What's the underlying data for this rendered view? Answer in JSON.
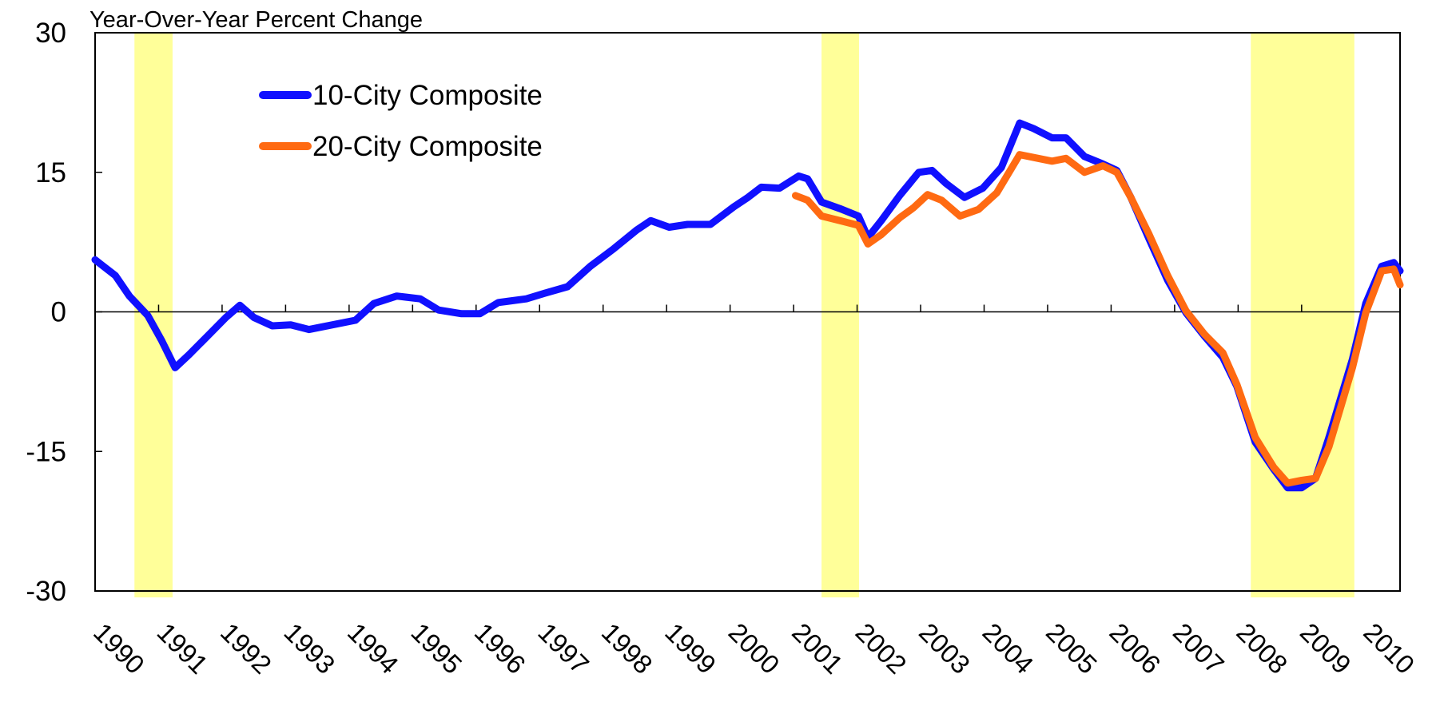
{
  "chart_data": {
    "type": "line",
    "y_label": "Year-Over-Year Percent Change",
    "xlim": [
      1990,
      2010.55
    ],
    "ylim": [
      -30,
      30
    ],
    "yticks": [
      -30,
      -15,
      0,
      15,
      30
    ],
    "xticks": [
      1990,
      1991,
      1992,
      1993,
      1994,
      1995,
      1996,
      1997,
      1998,
      1999,
      2000,
      2001,
      2002,
      2003,
      2004,
      2005,
      2006,
      2007,
      2008,
      2009,
      2010
    ],
    "legend": "upper left",
    "recession_color": "#ffff99",
    "recessions": [
      [
        1990.62,
        1991.22
      ],
      [
        2001.44,
        2002.03
      ],
      [
        2008.2,
        2009.83
      ]
    ],
    "series": [
      {
        "name": "10-City Composite",
        "color": "#1010ff",
        "x": [
          1990.0,
          1990.32,
          1990.54,
          1990.83,
          1991.05,
          1991.26,
          1991.48,
          1991.77,
          1992.06,
          1992.28,
          1992.5,
          1992.79,
          1993.08,
          1993.37,
          1993.59,
          1994.1,
          1994.39,
          1994.75,
          1995.12,
          1995.41,
          1995.77,
          1996.06,
          1996.35,
          1996.79,
          1997.08,
          1997.44,
          1997.8,
          1998.17,
          1998.53,
          1998.75,
          1999.04,
          1999.33,
          1999.69,
          2000.06,
          2000.28,
          2000.49,
          2000.78,
          2001.08,
          2001.22,
          2001.44,
          2001.73,
          2002.02,
          2002.17,
          2002.38,
          2002.67,
          2002.97,
          2003.18,
          2003.4,
          2003.69,
          2003.98,
          2004.27,
          2004.56,
          2004.78,
          2005.07,
          2005.29,
          2005.58,
          2005.87,
          2006.09,
          2006.31,
          2006.6,
          2006.89,
          2007.18,
          2007.47,
          2007.76,
          2007.98,
          2008.27,
          2008.56,
          2008.78,
          2009.0,
          2009.22,
          2009.43,
          2009.8,
          2010.01,
          2010.26,
          2010.45,
          2010.55
        ],
        "values": [
          5.6,
          3.9,
          1.7,
          -0.4,
          -3.1,
          -6.0,
          -4.6,
          -2.6,
          -0.6,
          0.7,
          -0.6,
          -1.5,
          -1.4,
          -1.9,
          -1.6,
          -0.9,
          0.9,
          1.7,
          1.4,
          0.2,
          -0.2,
          -0.2,
          1.0,
          1.4,
          2.0,
          2.7,
          4.9,
          6.8,
          8.8,
          9.8,
          9.1,
          9.4,
          9.4,
          11.3,
          12.3,
          13.4,
          13.3,
          14.6,
          14.3,
          11.8,
          11.1,
          10.3,
          8.0,
          9.8,
          12.5,
          15.0,
          15.2,
          13.8,
          12.3,
          13.3,
          15.5,
          20.3,
          19.7,
          18.7,
          18.7,
          16.7,
          15.9,
          15.2,
          12.3,
          7.8,
          3.4,
          -0.1,
          -2.6,
          -4.9,
          -8.0,
          -14.0,
          -16.9,
          -18.9,
          -18.9,
          -17.9,
          -13.5,
          -5.1,
          0.9,
          4.9,
          5.3,
          4.4
        ]
      },
      {
        "name": "20-City Composite",
        "color": "#ff6a12",
        "x": [
          2001.03,
          2001.22,
          2001.44,
          2001.73,
          2002.02,
          2002.17,
          2002.38,
          2002.67,
          2002.89,
          2003.11,
          2003.33,
          2003.62,
          2003.91,
          2004.2,
          2004.56,
          2004.85,
          2005.07,
          2005.29,
          2005.58,
          2005.87,
          2006.09,
          2006.31,
          2006.6,
          2006.89,
          2007.18,
          2007.47,
          2007.76,
          2007.98,
          2008.27,
          2008.56,
          2008.78,
          2009.0,
          2009.22,
          2009.43,
          2009.8,
          2010.01,
          2010.26,
          2010.45,
          2010.55
        ],
        "values": [
          12.5,
          12.0,
          10.3,
          9.8,
          9.3,
          7.3,
          8.3,
          10.1,
          11.2,
          12.6,
          12.0,
          10.3,
          11.0,
          12.8,
          16.9,
          16.5,
          16.2,
          16.5,
          15.0,
          15.7,
          15.0,
          12.3,
          8.3,
          3.9,
          0.1,
          -2.4,
          -4.4,
          -7.8,
          -13.5,
          -16.7,
          -18.4,
          -18.1,
          -17.9,
          -14.5,
          -6.0,
          -0.1,
          4.4,
          4.6,
          2.9
        ]
      }
    ]
  }
}
